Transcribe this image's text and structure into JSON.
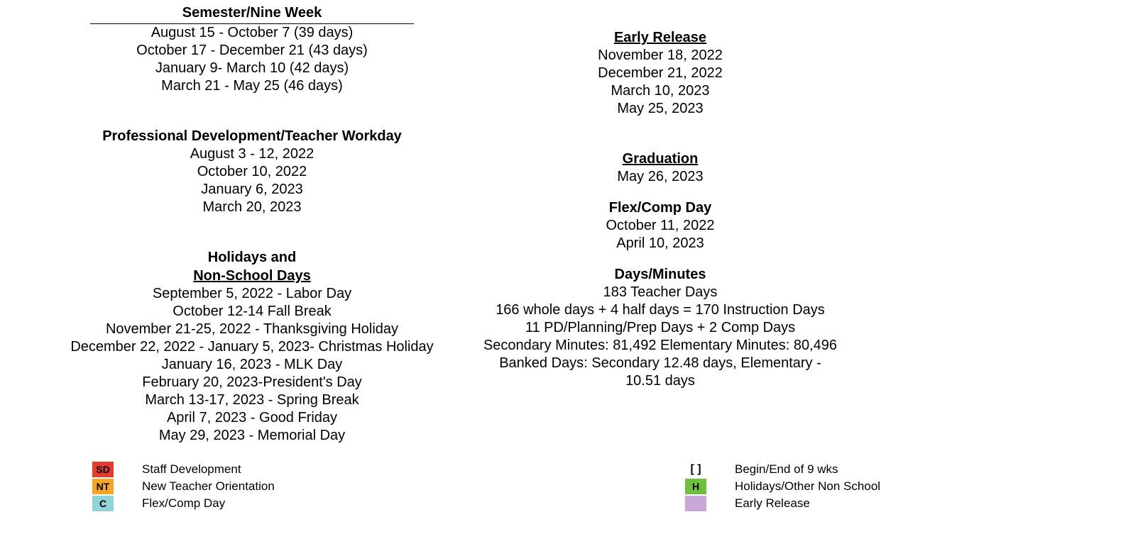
{
  "left": {
    "semester": {
      "title": "Semester/Nine Week",
      "items": [
        "August 15  - October 7 (39 days)",
        "October 17 - December 21 (43 days)",
        "January 9- March 10 (42 days)",
        "March 21 - May 25 (46 days)"
      ]
    },
    "pd": {
      "title": "Professional Development/Teacher Workday",
      "items": [
        "August 3 - 12, 2022",
        "October 10, 2022",
        "January 6, 2023",
        "March 20, 2023"
      ]
    },
    "holidays": {
      "title1": "Holidays  and",
      "title2": "Non-School Days",
      "items": [
        "September 5, 2022  - Labor Day",
        "October 12-14 Fall Break",
        "November 21-25, 2022 - Thanksgiving Holiday",
        "December 22, 2022 - January 5, 2023- Christmas Holiday",
        "January 16, 2023 - MLK Day",
        "February 20, 2023-President's Day",
        "March 13-17, 2023 - Spring Break",
        "April 7, 2023 - Good Friday",
        "May 29, 2023 - Memorial Day"
      ]
    }
  },
  "right": {
    "early": {
      "title": "Early Release",
      "items": [
        "November 18, 2022",
        "December 21, 2022",
        "March 10, 2023",
        "May 25, 2023"
      ]
    },
    "grad": {
      "title": "Graduation",
      "items": [
        "May 26, 2023"
      ]
    },
    "flex": {
      "title": "Flex/Comp Day",
      "items": [
        "October 11, 2022",
        "April 10, 2023"
      ]
    },
    "days": {
      "title": "Days/Minutes",
      "items": [
        "183 Teacher Days",
        "166 whole days + 4 half days = 170 Instruction Days",
        "11 PD/Planning/Prep Days + 2 Comp Days",
        "Secondary Minutes: 81,492   Elementary Minutes: 80,496",
        "Banked Days: Secondary 12.48 days,   Elementary - 10.51 days"
      ]
    }
  },
  "legendLeft": [
    {
      "code": "SD",
      "label": "Staff Development",
      "bg": "#e63b2e"
    },
    {
      "code": "NT",
      "label": "New Teacher Orientation",
      "bg": "#f5a623"
    },
    {
      "code": "C",
      "label": "Flex/Comp Day",
      "bg": "#8fd4d9"
    }
  ],
  "legendRight": [
    {
      "code": "[ ]",
      "label": "Begin/End of 9 wks",
      "bg": ""
    },
    {
      "code": "H",
      "label": "Holidays/Other Non School",
      "bg": "#6fbf3f"
    },
    {
      "code": "",
      "label": "Early Release",
      "bg": "#c9a8d8"
    }
  ]
}
